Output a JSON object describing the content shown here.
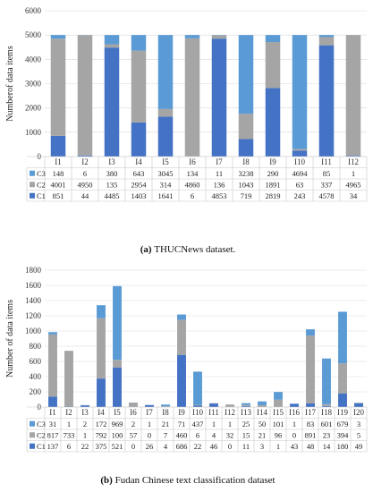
{
  "colors": {
    "C1": "#4472c4",
    "C2": "#a5a5a5",
    "C3": "#5b9bd5"
  },
  "chart_data": [
    {
      "type": "bar",
      "stacked": true,
      "caption_label": "(a)",
      "caption_text": "THUCNews dataset.",
      "ylabel": "Numberof data items",
      "ylim": [
        0,
        6000
      ],
      "yticks": [
        "0",
        "1000",
        "2000",
        "3000",
        "4000",
        "5000",
        "6000"
      ],
      "categories": [
        "I1",
        "I2",
        "I3",
        "I4",
        "I5",
        "I6",
        "I7",
        "I8",
        "I9",
        "I10",
        "I11",
        "I12"
      ],
      "series": [
        {
          "name": "C1",
          "values": [
            851,
            44,
            4485,
            1403,
            1641,
            6,
            4853,
            719,
            2819,
            243,
            4578,
            34
          ]
        },
        {
          "name": "C2",
          "values": [
            4001,
            4950,
            135,
            2954,
            314,
            4860,
            136,
            1043,
            1891,
            63,
            337,
            4965
          ]
        },
        {
          "name": "C3",
          "values": [
            148,
            6,
            380,
            643,
            3045,
            134,
            11,
            3238,
            290,
            4694,
            85,
            1
          ]
        }
      ],
      "grid": true
    },
    {
      "type": "bar",
      "stacked": true,
      "caption_label": "(b)",
      "caption_text": "Fudan Chinese text classification dataset",
      "ylabel": "Number of data items",
      "ylim": [
        0,
        1800
      ],
      "yticks": [
        "0",
        "200",
        "400",
        "600",
        "800",
        "1000",
        "1200",
        "1400",
        "1600",
        "1800"
      ],
      "categories": [
        "I1",
        "I2",
        "I3",
        "I4",
        "I5",
        "I6",
        "I7",
        "I8",
        "I9",
        "I10",
        "I11",
        "I12",
        "I13",
        "I14",
        "I15",
        "I16",
        "I17",
        "I18",
        "I19",
        "I20"
      ],
      "series": [
        {
          "name": "C1",
          "values": [
            137,
            6,
            22,
            375,
            521,
            0,
            26,
            4,
            686,
            22,
            46,
            0,
            11,
            3,
            1,
            43,
            48,
            14,
            180,
            49
          ]
        },
        {
          "name": "C2",
          "values": [
            817,
            733,
            1,
            792,
            100,
            57,
            0,
            7,
            460,
            6,
            4,
            32,
            15,
            21,
            96,
            0,
            891,
            23,
            394,
            5
          ]
        },
        {
          "name": "C3",
          "values": [
            31,
            1,
            2,
            172,
            969,
            2,
            1,
            21,
            71,
            437,
            1,
            1,
            25,
            50,
            101,
            1,
            83,
            601,
            679,
            3
          ]
        }
      ],
      "grid": true
    }
  ]
}
